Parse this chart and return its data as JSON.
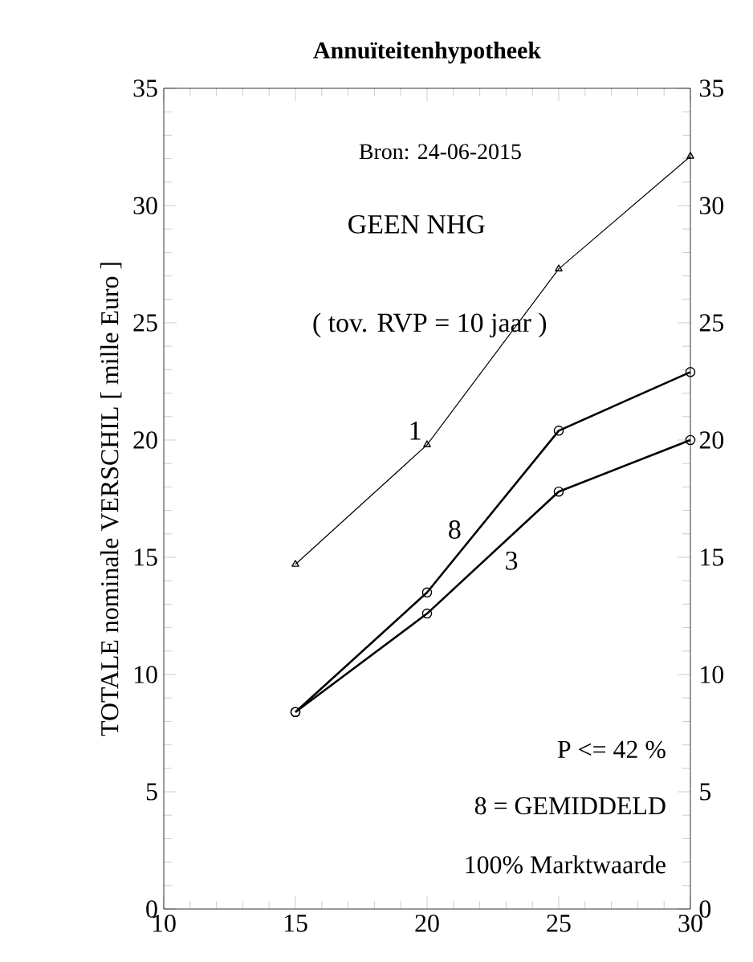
{
  "chart_data": {
    "type": "line",
    "title": "Annuïteitenhypotheek",
    "ylabel": "TOTALE nominale VERSCHIL [ mille Euro ]",
    "x": [
      15,
      20,
      25,
      30
    ],
    "series": [
      {
        "name": "1",
        "color": "#000000",
        "marker": "triangle",
        "values": [
          14.7,
          19.8,
          27.3,
          32.1
        ]
      },
      {
        "name": "8",
        "color": "#000000",
        "marker": "circle",
        "values": [
          8.4,
          13.5,
          20.4,
          22.9
        ]
      },
      {
        "name": "3",
        "color": "#000000",
        "marker": "circle",
        "values": [
          8.4,
          12.6,
          17.8,
          20.0
        ]
      }
    ],
    "xlim": [
      10,
      30
    ],
    "xticks": [
      10,
      15,
      20,
      25,
      30
    ],
    "ylim": [
      0,
      35
    ],
    "yticks": [
      0,
      5,
      10,
      15,
      20,
      25,
      30,
      35
    ],
    "y2lim": [
      0,
      35
    ],
    "y2ticks": [
      0,
      5,
      10,
      15,
      20,
      25,
      30,
      35
    ],
    "grid": false,
    "legend": false,
    "line_style": "solid",
    "annotations": [
      "Bron: 24-06-2015",
      "GEEN NHG",
      "( tov. RVP = 10 jaar )",
      "P <= 42 %",
      "8 = GEMIDDELD",
      "100% Marktwaarde"
    ]
  }
}
